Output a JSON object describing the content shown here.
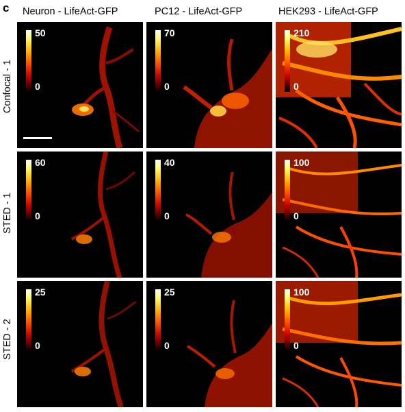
{
  "panel_letter": "c",
  "columns": [
    "Neuron - LifeAct-GFP",
    "PC12 - LifeAct-GFP",
    "HEK293 - LifeAct-GFP"
  ],
  "rows": [
    {
      "label": "Confocal - 1",
      "colorbars": [
        {
          "max": "50",
          "min": "0"
        },
        {
          "max": "70",
          "min": "0"
        },
        {
          "max": "210",
          "min": "0"
        }
      ]
    },
    {
      "label": "STED - 1",
      "colorbars": [
        {
          "max": "60",
          "min": "0"
        },
        {
          "max": "40",
          "min": "0"
        },
        {
          "max": "100",
          "min": "0"
        }
      ]
    },
    {
      "label": "STED - 2",
      "colorbars": [
        {
          "max": "25",
          "min": "0"
        },
        {
          "max": "25",
          "min": "0"
        },
        {
          "max": "100",
          "min": "0"
        }
      ]
    }
  ],
  "colormap": [
    "#000000",
    "#500000",
    "#c80000",
    "#ff5000",
    "#ffb400",
    "#fffc6a",
    "#ffffff"
  ]
}
